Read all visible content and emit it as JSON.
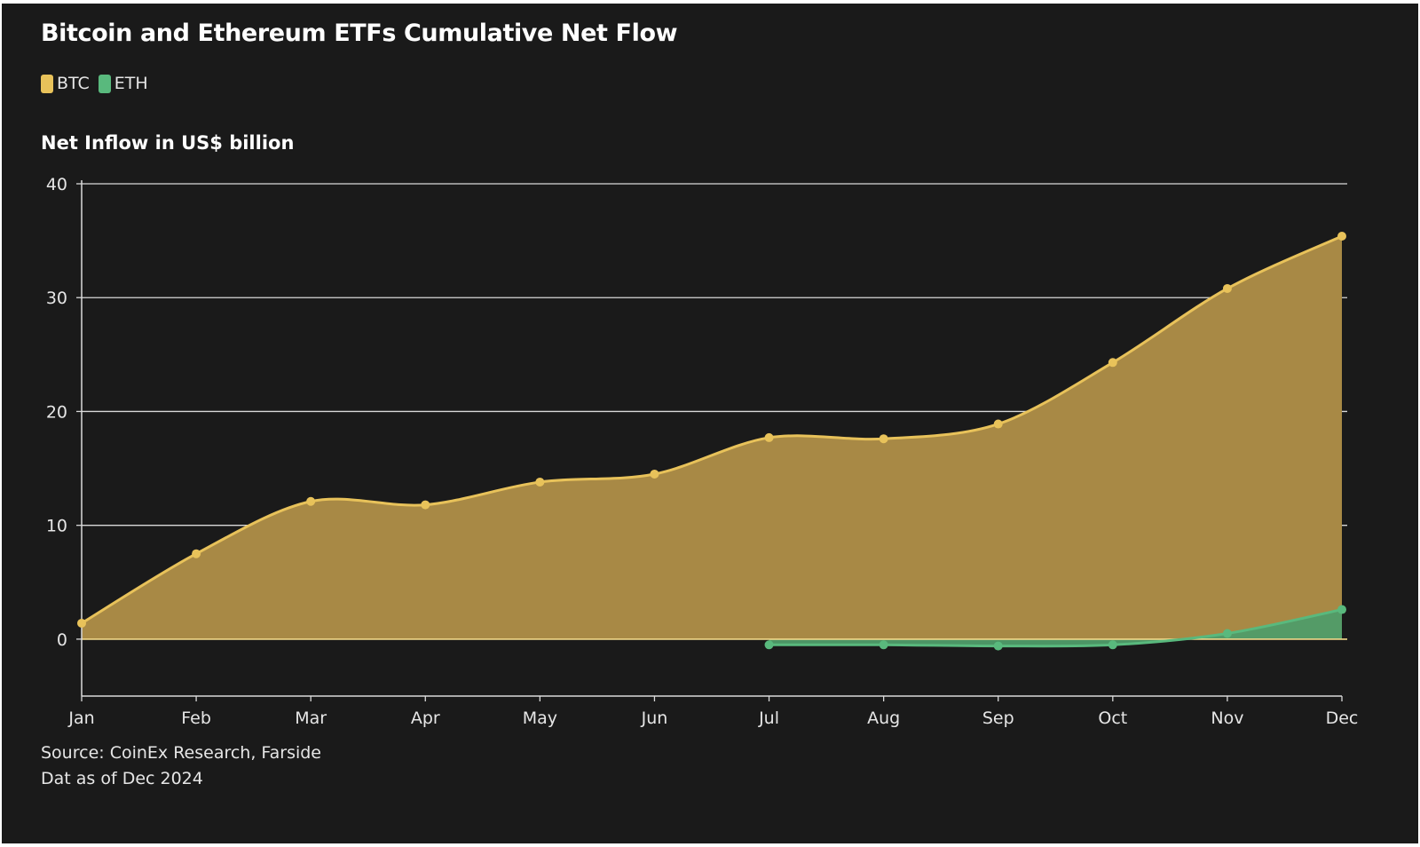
{
  "colors": {
    "background": "#1a1a1a",
    "btc_line": "#e8c25a",
    "btc_fill": "#a88945",
    "eth_line": "#59b97d",
    "eth_fill": "#4f9c69",
    "grid": "#d9d9d9"
  },
  "chart_data": {
    "type": "area",
    "title": "Bitcoin and Ethereum ETFs Cumulative Net Flow",
    "ylabel": "Net Inflow in US$ billion",
    "xlabel": "",
    "categories": [
      "Jan",
      "Feb",
      "Mar",
      "Apr",
      "May",
      "Jun",
      "Jul",
      "Aug",
      "Sep",
      "Oct",
      "Nov",
      "Dec"
    ],
    "ylim": [
      -5,
      40
    ],
    "yticks": [
      0,
      10,
      20,
      30,
      40
    ],
    "grid": true,
    "legend_position": "top-left",
    "series": [
      {
        "name": "BTC",
        "values": [
          1.4,
          7.5,
          12.1,
          11.8,
          13.8,
          14.5,
          17.7,
          17.6,
          18.9,
          24.3,
          30.8,
          35.4
        ]
      },
      {
        "name": "ETH",
        "values": [
          null,
          null,
          null,
          null,
          null,
          null,
          -0.5,
          -0.5,
          -0.6,
          -0.5,
          0.5,
          2.6
        ]
      }
    ],
    "source": "Source: CoinEx Research, Farside",
    "note": "Dat as of Dec 2024"
  }
}
